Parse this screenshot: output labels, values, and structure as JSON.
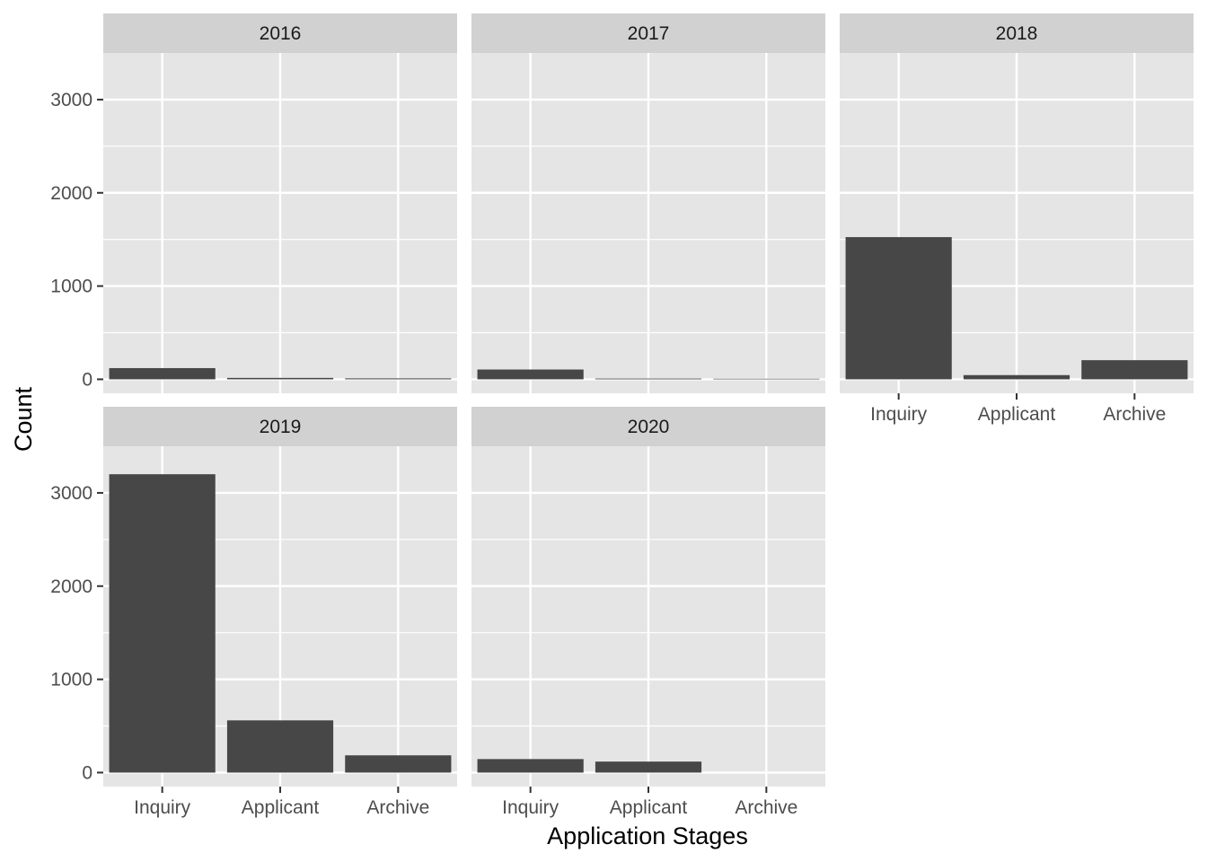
{
  "chart_data": {
    "type": "bar",
    "xlabel": "Application Stages",
    "ylabel": "Count",
    "categories": [
      "Inquiry",
      "Applicant",
      "Archive"
    ],
    "ylim": [
      -150,
      3500
    ],
    "yticks": [
      0,
      1000,
      2000,
      3000
    ],
    "ytick_labels": [
      "0",
      "1000",
      "2000",
      "3000"
    ],
    "grid": true,
    "facets": [
      {
        "label": "2016",
        "values": [
          120,
          15,
          10
        ]
      },
      {
        "label": "2017",
        "values": [
          105,
          8,
          6
        ]
      },
      {
        "label": "2018",
        "values": [
          1525,
          45,
          205
        ]
      },
      {
        "label": "2019",
        "values": [
          3200,
          560,
          185
        ]
      },
      {
        "label": "2020",
        "values": [
          145,
          118,
          0
        ]
      }
    ],
    "colors": {
      "bar": "#474747",
      "panel_bg": "#e5e5e5",
      "strip_bg": "#d1d1d1",
      "grid": "#ffffff"
    }
  }
}
